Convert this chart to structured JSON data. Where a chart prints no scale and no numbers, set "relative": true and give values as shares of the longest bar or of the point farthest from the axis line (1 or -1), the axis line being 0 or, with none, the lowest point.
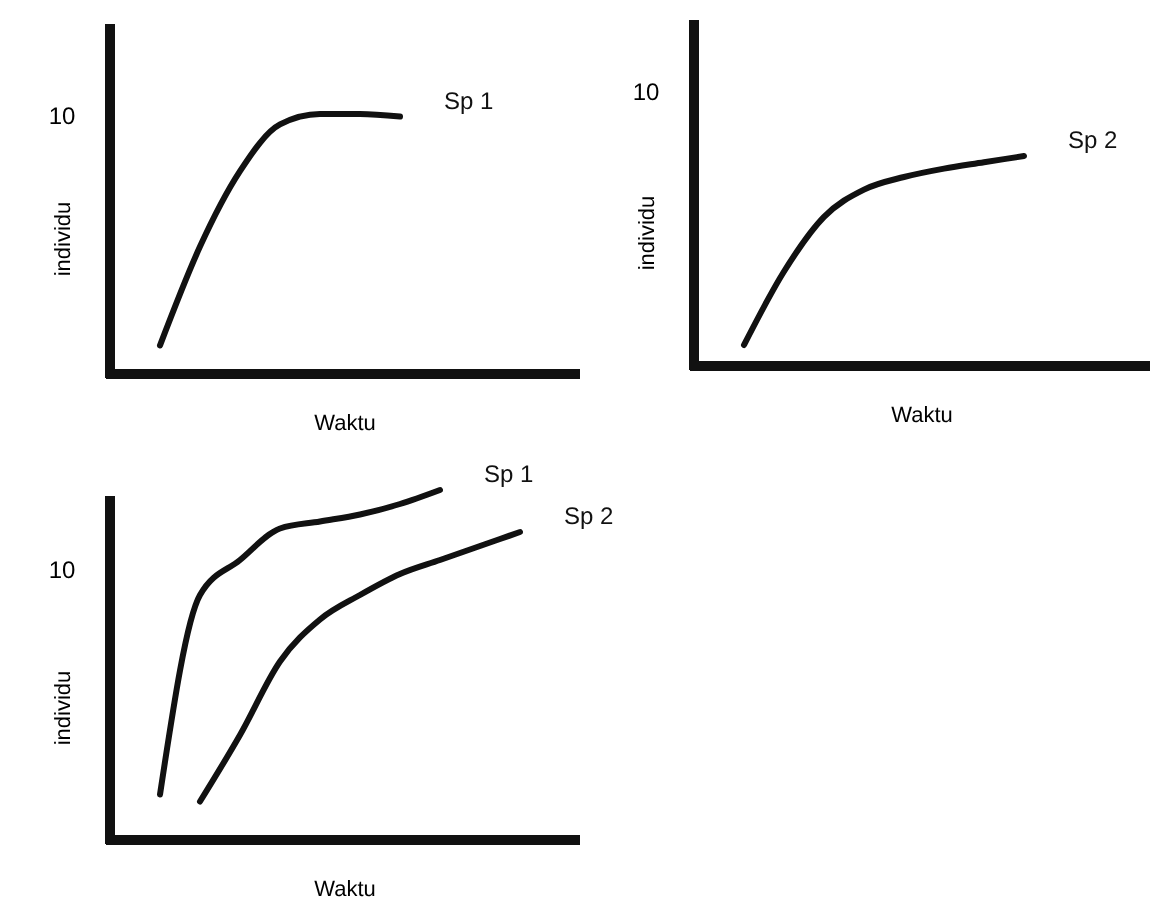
{
  "chart_data": [
    {
      "type": "line",
      "relative": true,
      "xlabel": "Waktu",
      "ylabel": "individu",
      "legend": false,
      "marker": "none",
      "categories": [
        null,
        null,
        null,
        null,
        null,
        null,
        null,
        null,
        null,
        null,
        null,
        null
      ],
      "series": [
        {
          "name": "Sp 1",
          "color": "#111111",
          "values": [
            null,
            0.11,
            0.49,
            0.78,
            0.96,
            1.0,
            1.0,
            0.99,
            null,
            null,
            null,
            null
          ]
        }
      ],
      "annotations": [
        "10"
      ]
    },
    {
      "type": "line",
      "relative": true,
      "xlabel": "Waktu",
      "ylabel": "individu",
      "legend": false,
      "marker": "none",
      "categories": [
        null,
        null,
        null,
        null,
        null,
        null,
        null,
        null,
        null,
        null,
        null,
        null
      ],
      "series": [
        {
          "name": "Sp 2",
          "color": "#111111",
          "values": [
            null,
            0.1,
            0.45,
            0.71,
            0.84,
            0.9,
            0.94,
            0.97,
            1.0,
            null,
            null,
            null
          ]
        }
      ],
      "annotations": [
        "10"
      ]
    },
    {
      "type": "line",
      "relative": true,
      "xlabel": "Waktu",
      "ylabel": "individu",
      "legend": false,
      "marker": "none",
      "categories": [
        null,
        null,
        null,
        null,
        null,
        null,
        null,
        null,
        null,
        null,
        null,
        null
      ],
      "series": [
        {
          "name": "Sp 1",
          "color": "#111111",
          "values": [
            null,
            0.13,
            0.7,
            0.8,
            0.89,
            0.91,
            0.93,
            0.96,
            1.0,
            null,
            null,
            null
          ]
        },
        {
          "name": "Sp 2",
          "color": "#111111",
          "values": [
            null,
            null,
            0.11,
            0.3,
            0.51,
            0.63,
            0.7,
            0.76,
            0.8,
            0.84,
            0.88,
            null
          ]
        }
      ],
      "annotations": [
        "10"
      ]
    }
  ]
}
